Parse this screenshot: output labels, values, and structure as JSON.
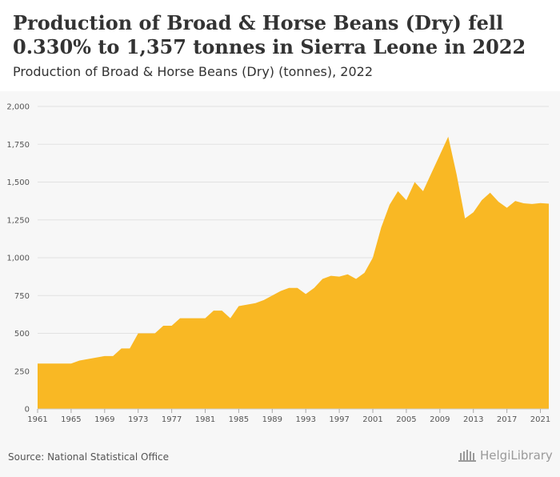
{
  "title": "Production of Broad & Horse Beans (Dry) fell 0.330% to 1,357 tonnes in Sierra Leone in 2022",
  "subtitle": "Production of Broad & Horse Beans (Dry) (tonnes), 2022",
  "source": "Source: National Statistical Office",
  "brand": {
    "text": "HelgiLibrary",
    "icon": "library-building-icon"
  },
  "colors": {
    "area": "#f9b824",
    "panel": "#f7f7f7",
    "grid": "#e2e2e2"
  },
  "chart_data": {
    "type": "area",
    "x_ticks": [
      1961,
      1965,
      1969,
      1973,
      1977,
      1981,
      1985,
      1989,
      1993,
      1997,
      2001,
      2005,
      2009,
      2013,
      2017,
      2021
    ],
    "y_ticks": [
      0,
      250,
      500,
      750,
      1000,
      1250,
      1500,
      1750,
      2000
    ],
    "y_tick_labels": [
      "0",
      "250",
      "500",
      "750",
      "1,000",
      "1,250",
      "1,500",
      "1,750",
      "2,000"
    ],
    "xlim": [
      1961,
      2022
    ],
    "ylim": [
      0,
      2000
    ],
    "grid": true,
    "x": [
      1961,
      1962,
      1963,
      1964,
      1965,
      1966,
      1967,
      1968,
      1969,
      1970,
      1971,
      1972,
      1973,
      1974,
      1975,
      1976,
      1977,
      1978,
      1979,
      1980,
      1981,
      1982,
      1983,
      1984,
      1985,
      1986,
      1987,
      1988,
      1989,
      1990,
      1991,
      1992,
      1993,
      1994,
      1995,
      1996,
      1997,
      1998,
      1999,
      2000,
      2001,
      2002,
      2003,
      2004,
      2005,
      2006,
      2007,
      2008,
      2009,
      2010,
      2011,
      2012,
      2013,
      2014,
      2015,
      2016,
      2017,
      2018,
      2019,
      2020,
      2021,
      2022
    ],
    "values": [
      300,
      300,
      300,
      300,
      300,
      320,
      330,
      340,
      350,
      350,
      400,
      400,
      500,
      500,
      500,
      550,
      550,
      600,
      600,
      600,
      600,
      650,
      650,
      600,
      680,
      690,
      700,
      720,
      750,
      780,
      800,
      800,
      760,
      800,
      860,
      880,
      875,
      890,
      860,
      900,
      1000,
      1200,
      1350,
      1440,
      1380,
      1500,
      1440,
      1560,
      1680,
      1800,
      1550,
      1260,
      1300,
      1380,
      1430,
      1370,
      1330,
      1375,
      1360,
      1355,
      1361,
      1357
    ]
  }
}
